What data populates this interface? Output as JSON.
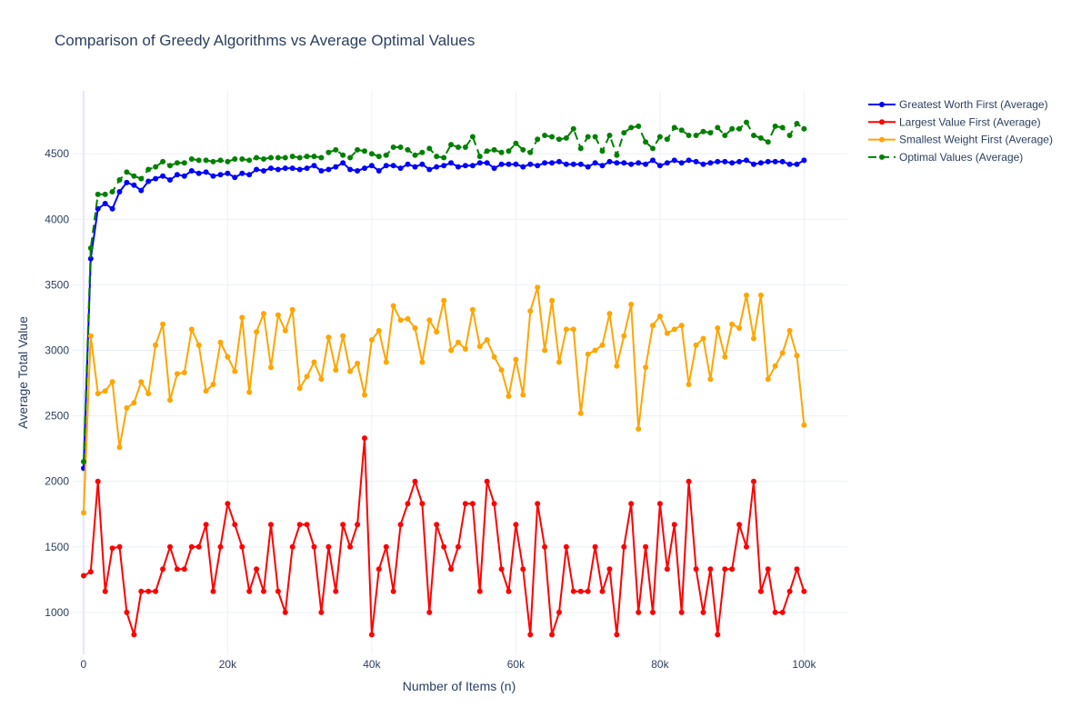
{
  "chart_data": {
    "type": "line",
    "title": "Comparison of Greedy Algorithms vs Average Optimal Values",
    "xlabel": "Number of Items (n)",
    "ylabel": "Average Total Value",
    "xlim": [
      -1500,
      106000
    ],
    "ylim": [
      680,
      4980
    ],
    "x_ticks": [
      0,
      20000,
      40000,
      60000,
      80000,
      100000
    ],
    "x_tick_labels": [
      "0",
      "20k",
      "40k",
      "60k",
      "80k",
      "100k"
    ],
    "y_ticks": [
      1000,
      1500,
      2000,
      2500,
      3000,
      3500,
      4000,
      4500
    ],
    "y_tick_labels": [
      "1000",
      "1500",
      "2000",
      "2500",
      "3000",
      "3500",
      "4000",
      "4500"
    ],
    "grid": true,
    "legend_position": "top-right",
    "x": [
      10,
      1000,
      2000,
      3000,
      4000,
      5000,
      6000,
      7000,
      8000,
      9000,
      10000,
      11000,
      12000,
      13000,
      14000,
      15000,
      16000,
      17000,
      18000,
      19000,
      20000,
      21000,
      22000,
      23000,
      24000,
      25000,
      26000,
      27000,
      28000,
      29000,
      30000,
      31000,
      32000,
      33000,
      34000,
      35000,
      36000,
      37000,
      38000,
      39000,
      40000,
      41000,
      42000,
      43000,
      44000,
      45000,
      46000,
      47000,
      48000,
      49000,
      50000,
      51000,
      52000,
      53000,
      54000,
      55000,
      56000,
      57000,
      58000,
      59000,
      60000,
      61000,
      62000,
      63000,
      64000,
      65000,
      66000,
      67000,
      68000,
      69000,
      70000,
      71000,
      72000,
      73000,
      74000,
      75000,
      76000,
      77000,
      78000,
      79000,
      80000,
      81000,
      82000,
      83000,
      84000,
      85000,
      86000,
      87000,
      88000,
      89000,
      90000,
      91000,
      92000,
      93000,
      94000,
      95000,
      96000,
      97000,
      98000,
      99000,
      100000
    ],
    "series": [
      {
        "name": "Greatest Worth First (Average)",
        "color": "#0000ff",
        "dash": "solid",
        "values": [
          2100,
          3700,
          4080,
          4120,
          4080,
          4210,
          4280,
          4260,
          4220,
          4290,
          4310,
          4330,
          4300,
          4340,
          4330,
          4370,
          4350,
          4360,
          4330,
          4340,
          4350,
          4320,
          4350,
          4340,
          4380,
          4370,
          4390,
          4380,
          4390,
          4390,
          4380,
          4390,
          4410,
          4370,
          4380,
          4400,
          4430,
          4380,
          4370,
          4390,
          4410,
          4370,
          4410,
          4410,
          4390,
          4420,
          4400,
          4420,
          4380,
          4400,
          4410,
          4430,
          4400,
          4410,
          4410,
          4430,
          4430,
          4390,
          4420,
          4420,
          4420,
          4400,
          4420,
          4410,
          4430,
          4430,
          4440,
          4420,
          4420,
          4420,
          4400,
          4430,
          4410,
          4440,
          4430,
          4430,
          4420,
          4430,
          4420,
          4450,
          4410,
          4430,
          4450,
          4430,
          4450,
          4440,
          4420,
          4430,
          4440,
          4440,
          4430,
          4440,
          4450,
          4420,
          4430,
          4440,
          4440,
          4440,
          4420,
          4420,
          4450
        ]
      },
      {
        "name": "Largest Value First (Average)",
        "color": "#ff0000",
        "dash": "solid",
        "values": [
          1280,
          1310,
          2000,
          1160,
          1490,
          1500,
          1000,
          830,
          1160,
          1160,
          1160,
          1330,
          1500,
          1330,
          1330,
          1500,
          1500,
          1670,
          1160,
          1500,
          1830,
          1670,
          1500,
          1160,
          1330,
          1160,
          1670,
          1160,
          1000,
          1500,
          1670,
          1670,
          1500,
          1000,
          1500,
          1160,
          1670,
          1500,
          1670,
          2330,
          830,
          1330,
          1500,
          1160,
          1670,
          1830,
          2000,
          1830,
          1000,
          1670,
          1500,
          1330,
          1500,
          1830,
          1830,
          1160,
          2000,
          1830,
          1330,
          1160,
          1670,
          1330,
          830,
          1830,
          1500,
          830,
          1000,
          1500,
          1160,
          1160,
          1160,
          1500,
          1160,
          1330,
          830,
          1500,
          1830,
          1000,
          1500,
          1000,
          1830,
          1330,
          1670,
          1000,
          2000,
          1330,
          1000,
          1330,
          830,
          1330,
          1330,
          1670,
          1500,
          2000,
          1160,
          1330,
          1000,
          1000,
          1160,
          1330,
          1160
        ]
      },
      {
        "name": "Smallest Weight First (Average)",
        "color": "#ffa500",
        "dash": "solid",
        "values": [
          1760,
          3110,
          2670,
          2690,
          2760,
          2260,
          2560,
          2600,
          2760,
          2670,
          3040,
          3200,
          2620,
          2820,
          2830,
          3160,
          3040,
          2690,
          2740,
          3060,
          2950,
          2840,
          3250,
          2680,
          3140,
          3280,
          2870,
          3270,
          3150,
          3310,
          2710,
          2800,
          2910,
          2780,
          3100,
          2850,
          3110,
          2840,
          2900,
          2660,
          3080,
          3150,
          2910,
          3340,
          3230,
          3240,
          3170,
          2910,
          3230,
          3140,
          3380,
          3000,
          3060,
          3010,
          3310,
          3030,
          3080,
          2950,
          2850,
          2650,
          2930,
          2660,
          3300,
          3480,
          3000,
          3380,
          2910,
          3160,
          3160,
          2520,
          2970,
          3000,
          3040,
          3280,
          2880,
          3110,
          3350,
          2400,
          2870,
          3190,
          3260,
          3130,
          3160,
          3190,
          2740,
          3040,
          3090,
          2780,
          3170,
          2950,
          3200,
          3170,
          3420,
          3090,
          3420,
          2780,
          2880,
          2980,
          3150,
          2960,
          2430
        ]
      },
      {
        "name": "Optimal Values (Average)",
        "color": "#008000",
        "dash": "dash",
        "values": [
          2150,
          3780,
          4190,
          4190,
          4210,
          4300,
          4360,
          4330,
          4310,
          4380,
          4400,
          4440,
          4410,
          4430,
          4430,
          4460,
          4450,
          4450,
          4440,
          4450,
          4440,
          4460,
          4460,
          4450,
          4470,
          4460,
          4470,
          4470,
          4470,
          4480,
          4470,
          4480,
          4480,
          4470,
          4510,
          4530,
          4490,
          4470,
          4530,
          4520,
          4500,
          4480,
          4490,
          4550,
          4550,
          4530,
          4490,
          4510,
          4540,
          4480,
          4470,
          4570,
          4550,
          4550,
          4630,
          4480,
          4520,
          4530,
          4510,
          4520,
          4580,
          4530,
          4510,
          4610,
          4640,
          4630,
          4610,
          4620,
          4690,
          4540,
          4630,
          4630,
          4520,
          4640,
          4490,
          4660,
          4700,
          4710,
          4590,
          4540,
          4630,
          4610,
          4700,
          4680,
          4640,
          4640,
          4670,
          4660,
          4700,
          4640,
          4690,
          4690,
          4740,
          4640,
          4620,
          4590,
          4710,
          4700,
          4640,
          4730,
          4690
        ]
      }
    ]
  }
}
